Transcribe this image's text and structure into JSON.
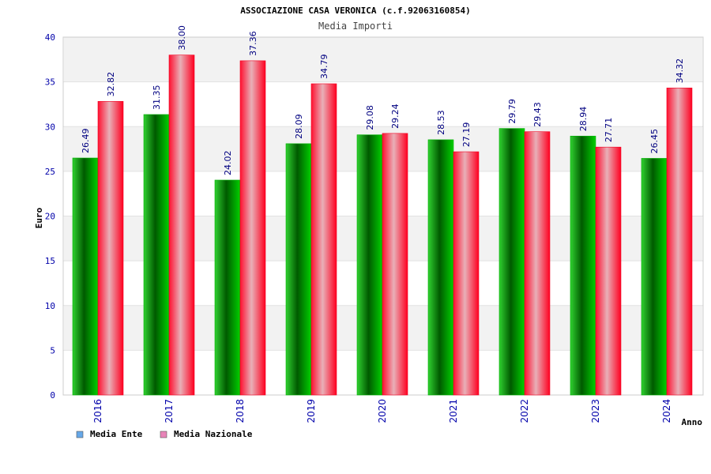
{
  "chart_data": {
    "type": "bar",
    "title": "ASSOCIAZIONE CASA VERONICA (c.f.92063160854)",
    "subtitle": "Media Importi",
    "xlabel": "Anno",
    "ylabel": "Euro",
    "ylim": [
      0,
      40
    ],
    "yticks": [
      "0",
      "5",
      "10",
      "15",
      "20",
      "25",
      "30",
      "35",
      "40"
    ],
    "categories": [
      "2016",
      "2017",
      "2018",
      "2019",
      "2020",
      "2021",
      "2022",
      "2023",
      "2024"
    ],
    "series": [
      {
        "name": "Media Ente",
        "values": [
          26.49,
          31.35,
          24.02,
          28.09,
          29.08,
          28.53,
          29.79,
          28.94,
          26.45
        ],
        "labels": [
          "26.49",
          "31.35",
          "24.02",
          "28.09",
          "29.08",
          "28.53",
          "29.79",
          "28.94",
          "26.45"
        ],
        "color": "#00b000",
        "legend_color": "#66a8e8"
      },
      {
        "name": "Media Nazionale",
        "values": [
          32.82,
          38.0,
          37.36,
          34.79,
          29.24,
          27.19,
          29.43,
          27.71,
          34.32
        ],
        "labels": [
          "32.82",
          "38.00",
          "37.36",
          "34.79",
          "29.24",
          "27.19",
          "29.43",
          "27.71",
          "34.32"
        ],
        "color": "#f00020",
        "legend_color": "#e884b8"
      }
    ],
    "grid": true,
    "grid_bands": true,
    "legend": "bottom-left",
    "colors": {
      "tick_text": "#0000aa",
      "value_text": "#000080",
      "band": "#f2f2f2",
      "axis": "#cccccc"
    }
  }
}
